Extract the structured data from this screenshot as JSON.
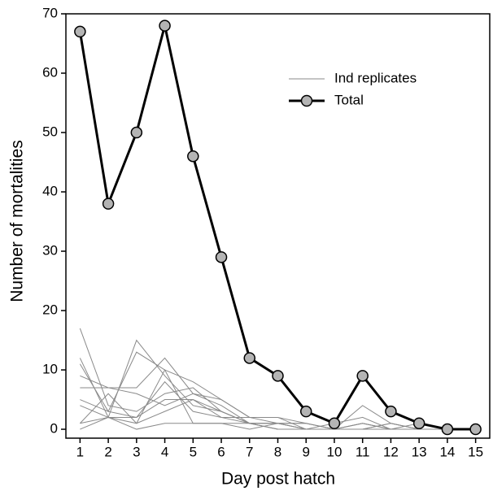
{
  "chart_data": {
    "type": "line",
    "x_label": "Day post hatch",
    "y_label": "Number of mortalities",
    "x": [
      1,
      2,
      3,
      4,
      5,
      6,
      7,
      8,
      9,
      10,
      11,
      12,
      13,
      14,
      15
    ],
    "xlim": [
      0.5,
      15.5
    ],
    "xticks": [
      1,
      2,
      3,
      4,
      5,
      6,
      7,
      8,
      9,
      10,
      11,
      12,
      13,
      14,
      15
    ],
    "ylim": [
      -1.5,
      70
    ],
    "yticks": [
      0,
      10,
      20,
      30,
      40,
      50,
      60,
      70
    ],
    "replicates": {
      "name": "Ind replicates",
      "color": "#8a8a8a",
      "lines": [
        [
          17,
          4,
          3,
          6,
          7,
          3,
          1,
          1,
          0,
          0,
          1,
          0,
          0,
          0,
          0
        ],
        [
          12,
          2,
          15,
          9,
          4,
          3,
          1,
          0,
          0,
          0,
          0,
          1,
          0,
          0,
          0
        ],
        [
          11,
          3,
          13,
          10,
          8,
          5,
          2,
          2,
          1,
          0,
          4,
          1,
          0,
          0,
          0
        ],
        [
          9,
          7,
          7,
          12,
          6,
          5,
          2,
          1,
          0,
          1,
          2,
          0,
          1,
          0,
          0
        ],
        [
          7,
          7,
          6,
          4,
          6,
          4,
          1,
          1,
          1,
          0,
          1,
          0,
          0,
          0,
          0
        ],
        [
          5,
          3,
          2,
          8,
          3,
          2,
          2,
          2,
          0,
          0,
          0,
          1,
          0,
          0,
          0
        ],
        [
          4,
          2,
          2,
          5,
          5,
          3,
          1,
          1,
          1,
          0,
          1,
          0,
          0,
          0,
          0
        ],
        [
          1,
          6,
          1,
          3,
          5,
          2,
          1,
          0,
          0,
          0,
          0,
          0,
          0,
          0,
          0
        ],
        [
          1,
          2,
          1,
          10,
          1,
          1,
          0,
          1,
          0,
          0,
          0,
          0,
          0,
          0,
          0
        ],
        [
          0,
          2,
          0,
          1,
          1,
          1,
          1,
          0,
          0,
          0,
          0,
          0,
          0,
          0,
          0
        ]
      ]
    },
    "series": [
      {
        "name": "Total",
        "color": "#000000",
        "marker_color": "#b4b4b4",
        "values": [
          67,
          38,
          50,
          68,
          46,
          29,
          12,
          9,
          3,
          1,
          9,
          3,
          1,
          0,
          0
        ]
      }
    ]
  }
}
